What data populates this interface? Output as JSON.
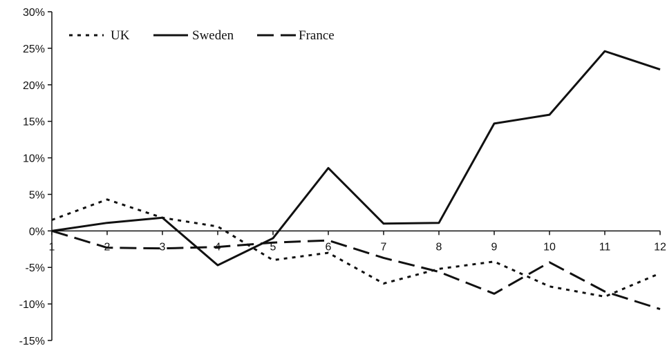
{
  "chart_data": {
    "type": "line",
    "title": "",
    "xlabel": "",
    "ylabel": "",
    "categories": [
      "1",
      "2",
      "3",
      "4",
      "5",
      "6",
      "7",
      "8",
      "9",
      "10",
      "11",
      "12"
    ],
    "y_ticks": [
      "30%",
      "25%",
      "20%",
      "15%",
      "10%",
      "5%",
      "0%",
      "-5%",
      "-10%",
      "-15%"
    ],
    "ylim": [
      -15,
      30
    ],
    "grid": false,
    "legend_position": "top-left",
    "series": [
      {
        "name": "UK",
        "style": "dotted",
        "color": "#111111",
        "values": [
          1.5,
          4.3,
          1.8,
          0.6,
          -4.0,
          -3.0,
          -7.2,
          -5.2,
          -4.2,
          -7.6,
          -9.0,
          -5.8
        ]
      },
      {
        "name": "Sweden",
        "style": "solid",
        "color": "#111111",
        "values": [
          0.0,
          1.1,
          1.8,
          -4.7,
          -1.0,
          8.6,
          1.0,
          1.1,
          14.7,
          15.9,
          24.6,
          22.1
        ]
      },
      {
        "name": "France",
        "style": "dashed",
        "color": "#111111",
        "values": [
          0.0,
          -2.3,
          -2.4,
          -2.2,
          -1.6,
          -1.3,
          -3.7,
          -5.6,
          -8.6,
          -4.3,
          -8.3,
          -10.7
        ]
      }
    ]
  }
}
